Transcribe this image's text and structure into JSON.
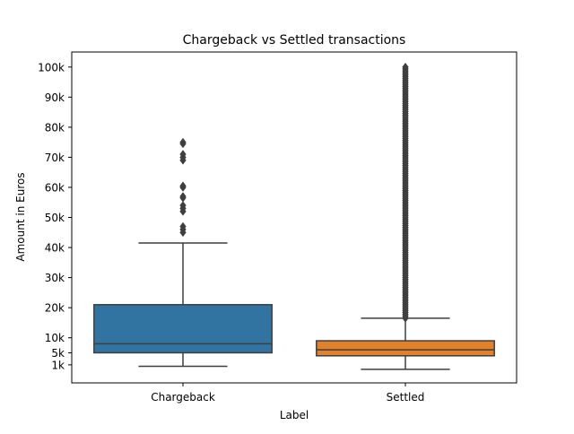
{
  "chart_data": {
    "type": "box",
    "title": "Chargeback vs Settled transactions",
    "xlabel": "Label",
    "ylabel": "Amount in Euros",
    "ylim": [
      -5000,
      105000
    ],
    "yticks": [
      {
        "value": 1000,
        "label": "1k"
      },
      {
        "value": 5000,
        "label": "5k"
      },
      {
        "value": 10000,
        "label": "10k"
      },
      {
        "value": 20000,
        "label": "20k"
      },
      {
        "value": 30000,
        "label": "30k"
      },
      {
        "value": 40000,
        "label": "40k"
      },
      {
        "value": 50000,
        "label": "50k"
      },
      {
        "value": 60000,
        "label": "60k"
      },
      {
        "value": 70000,
        "label": "70k"
      },
      {
        "value": 80000,
        "label": "80k"
      },
      {
        "value": 90000,
        "label": "90k"
      },
      {
        "value": 100000,
        "label": "100k"
      }
    ],
    "grid": false,
    "categories": [
      "Chargeback",
      "Settled"
    ],
    "boxes": [
      {
        "category": "Chargeback",
        "color": "#3274a1",
        "whisker_low": 500,
        "q1": 5000,
        "median": 8000,
        "q3": 21000,
        "whisker_high": 41500,
        "outliers": [
          45000,
          46000,
          47000,
          52000,
          53000,
          54000,
          56500,
          57000,
          60000,
          60500,
          69000,
          70000,
          71000,
          74500,
          75000
        ]
      },
      {
        "category": "Settled",
        "color": "#e1812c",
        "whisker_low": -500,
        "q1": 4000,
        "median": 6000,
        "q3": 9000,
        "whisker_high": 16500,
        "outlier_range": [
          16500,
          100000
        ]
      }
    ]
  }
}
